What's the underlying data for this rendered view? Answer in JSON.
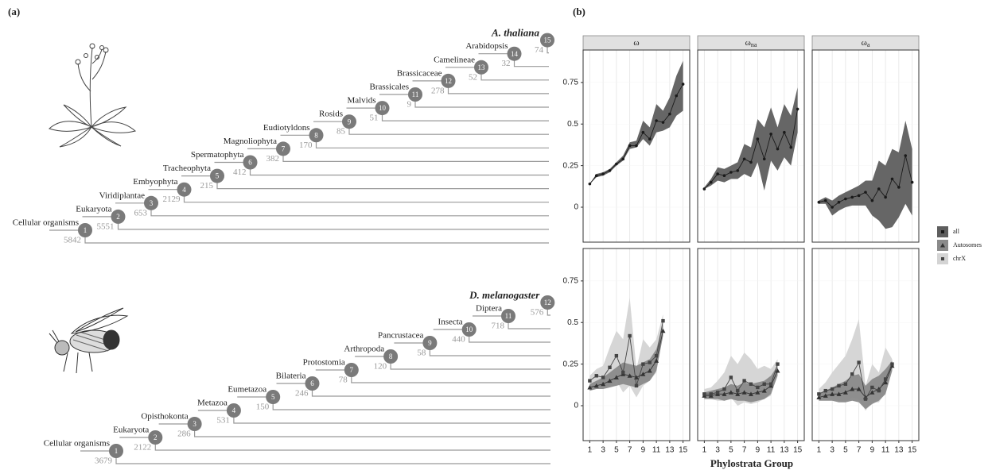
{
  "panel_a": {
    "label": "(a)",
    "trees": [
      {
        "species": "A. thaliana",
        "nodes": [
          {
            "id": 1,
            "name": "Cellular organisms",
            "count": 5842
          },
          {
            "id": 2,
            "name": "Eukaryota",
            "count": 5551
          },
          {
            "id": 3,
            "name": "Viridiplantae",
            "count": 653
          },
          {
            "id": 4,
            "name": "Embyophyta",
            "count": 2129
          },
          {
            "id": 5,
            "name": "Tracheophyta",
            "count": 215
          },
          {
            "id": 6,
            "name": "Spermatophyta",
            "count": 412
          },
          {
            "id": 7,
            "name": "Magnoliophyta",
            "count": 382
          },
          {
            "id": 8,
            "name": "Eudiotyldons",
            "count": 170
          },
          {
            "id": 9,
            "name": "Rosids",
            "count": 85
          },
          {
            "id": 10,
            "name": "Malvids",
            "count": 51
          },
          {
            "id": 11,
            "name": "Brassicales",
            "count": 9
          },
          {
            "id": 12,
            "name": "Brassicaceae",
            "count": 278
          },
          {
            "id": 13,
            "name": "Camelineae",
            "count": 52
          },
          {
            "id": 14,
            "name": "Arabidopsis",
            "count": 32
          },
          {
            "id": 15,
            "count": 74
          }
        ]
      },
      {
        "species": "D. melanogaster",
        "nodes": [
          {
            "id": 1,
            "name": "Cellular organisms",
            "count": 3679
          },
          {
            "id": 2,
            "name": "Eukaryota",
            "count": 2122
          },
          {
            "id": 3,
            "name": "Opisthokonta",
            "count": 286
          },
          {
            "id": 4,
            "name": "Metazoa",
            "count": 531
          },
          {
            "id": 5,
            "name": "Eumetazoa",
            "count": 150
          },
          {
            "id": 6,
            "name": "Bilateria",
            "count": 246
          },
          {
            "id": 7,
            "name": "Protostomia",
            "count": 78
          },
          {
            "id": 8,
            "name": "Arthropoda",
            "count": 120
          },
          {
            "id": 9,
            "name": "Pancrustacea",
            "count": 58
          },
          {
            "id": 10,
            "name": "Insecta",
            "count": 440
          },
          {
            "id": 11,
            "name": "Diptera",
            "count": 718
          },
          {
            "id": 12,
            "count": 576
          }
        ]
      }
    ]
  },
  "panel_b_label": "(b)",
  "x_label": "Phylostrata Group",
  "chart_data": [
    {
      "type": "line",
      "title": "ω",
      "xlim": [
        0,
        16
      ],
      "ylim": [
        -0.21,
        0.945
      ],
      "xticks": [
        1,
        3,
        5,
        7,
        9,
        11,
        13,
        15
      ],
      "yticks": [
        0,
        0.25,
        0.5,
        0.75
      ],
      "grid": true,
      "x": [
        1,
        2,
        3,
        4,
        5,
        6,
        7,
        8,
        9,
        10,
        11,
        12,
        13,
        14,
        15
      ],
      "series": [
        {
          "name": "all",
          "marker": "circle",
          "color": "#1a1a1a",
          "fill": "#5e5e5e",
          "values": [
            0.14,
            0.19,
            0.2,
            0.22,
            0.26,
            0.29,
            0.37,
            0.37,
            0.45,
            0.41,
            0.52,
            0.51,
            0.56,
            0.67,
            0.74
          ],
          "lower": [
            0.14,
            0.18,
            0.19,
            0.21,
            0.25,
            0.28,
            0.35,
            0.36,
            0.41,
            0.37,
            0.45,
            0.46,
            0.48,
            0.55,
            0.58
          ],
          "upper": [
            0.14,
            0.2,
            0.21,
            0.23,
            0.27,
            0.31,
            0.39,
            0.4,
            0.52,
            0.48,
            0.62,
            0.58,
            0.66,
            0.79,
            0.88
          ]
        }
      ]
    },
    {
      "type": "line",
      "title": "ω",
      "title_sub": "na",
      "xlim": [
        0,
        16
      ],
      "ylim": [
        -0.21,
        0.945
      ],
      "xticks": [
        1,
        3,
        5,
        7,
        9,
        11,
        13,
        15
      ],
      "yticks": [
        0,
        0.25,
        0.5,
        0.75
      ],
      "grid": true,
      "x": [
        1,
        2,
        3,
        4,
        5,
        6,
        7,
        8,
        9,
        10,
        11,
        12,
        13,
        14,
        15
      ],
      "series": [
        {
          "name": "all",
          "marker": "circle",
          "color": "#1a1a1a",
          "fill": "#5e5e5e",
          "values": [
            0.11,
            0.15,
            0.2,
            0.19,
            0.21,
            0.22,
            0.29,
            0.27,
            0.41,
            0.29,
            0.44,
            0.35,
            0.45,
            0.36,
            0.59
          ],
          "lower": [
            0.11,
            0.13,
            0.16,
            0.15,
            0.17,
            0.17,
            0.2,
            0.18,
            0.27,
            0.1,
            0.28,
            0.22,
            0.3,
            0.25,
            0.45
          ],
          "upper": [
            0.12,
            0.17,
            0.24,
            0.23,
            0.25,
            0.27,
            0.38,
            0.36,
            0.53,
            0.48,
            0.6,
            0.48,
            0.62,
            0.55,
            0.72
          ]
        }
      ]
    },
    {
      "type": "line",
      "title": "ω",
      "title_sub": "a",
      "xlim": [
        0,
        16
      ],
      "ylim": [
        -0.21,
        0.945
      ],
      "xticks": [
        1,
        3,
        5,
        7,
        9,
        11,
        13,
        15
      ],
      "yticks": [
        0,
        0.25,
        0.5,
        0.75
      ],
      "grid": true,
      "x": [
        1,
        2,
        3,
        4,
        5,
        6,
        7,
        8,
        9,
        10,
        11,
        12,
        13,
        14,
        15
      ],
      "series": [
        {
          "name": "all",
          "marker": "circle",
          "color": "#1a1a1a",
          "fill": "#5e5e5e",
          "values": [
            0.03,
            0.04,
            0,
            0.03,
            0.05,
            0.06,
            0.07,
            0.09,
            0.04,
            0.11,
            0.06,
            0.17,
            0.12,
            0.31,
            0.15
          ],
          "lower": [
            0.02,
            0.02,
            -0.05,
            -0.02,
            0,
            0.01,
            0.01,
            0.01,
            -0.05,
            -0.08,
            -0.13,
            -0.12,
            -0.06,
            0.02,
            -0.05
          ],
          "upper": [
            0.04,
            0.06,
            0.04,
            0.07,
            0.09,
            0.11,
            0.13,
            0.16,
            0.16,
            0.28,
            0.25,
            0.35,
            0.33,
            0.52,
            0.35
          ]
        }
      ]
    },
    {
      "type": "line",
      "xlim": [
        0,
        16
      ],
      "ylim": [
        -0.21,
        0.945
      ],
      "xticks": [
        1,
        3,
        5,
        7,
        9,
        11,
        13,
        15
      ],
      "yticks": [
        0,
        0.25,
        0.5,
        0.75
      ],
      "grid": true,
      "x": [
        1,
        2,
        3,
        4,
        5,
        6,
        7,
        8,
        9,
        10,
        11,
        12
      ],
      "series": [
        {
          "name": "Autosomes",
          "marker": "triangle",
          "color": "#333333",
          "fill": "#8a8a8a",
          "values": [
            0.11,
            0.12,
            0.13,
            0.15,
            0.17,
            0.19,
            0.18,
            0.17,
            0.19,
            0.21,
            0.27,
            0.45
          ],
          "lower": [
            0.09,
            0.1,
            0.1,
            0.11,
            0.12,
            0.13,
            0.12,
            0.11,
            0.13,
            0.15,
            0.21,
            0.42
          ],
          "upper": [
            0.13,
            0.15,
            0.17,
            0.2,
            0.23,
            0.26,
            0.25,
            0.24,
            0.26,
            0.28,
            0.34,
            0.49
          ]
        },
        {
          "name": "chrX",
          "marker": "square",
          "color": "#444444",
          "fill": "#d4d4d4",
          "values": [
            0.15,
            0.18,
            0.17,
            0.23,
            0.3,
            0.2,
            0.42,
            0.12,
            0.25,
            0.26,
            0.3,
            0.51
          ],
          "lower": [
            0.12,
            0.14,
            0.12,
            0.12,
            0.15,
            0.08,
            0.12,
            0.05,
            0.12,
            0.15,
            0.2,
            0.45
          ],
          "upper": [
            0.18,
            0.22,
            0.24,
            0.35,
            0.45,
            0.4,
            0.65,
            0.22,
            0.4,
            0.35,
            0.4,
            0.55
          ]
        }
      ]
    },
    {
      "type": "line",
      "xlim": [
        0,
        16
      ],
      "ylim": [
        -0.21,
        0.945
      ],
      "xticks": [
        1,
        3,
        5,
        7,
        9,
        11,
        13,
        15
      ],
      "yticks": [
        0,
        0.25,
        0.5,
        0.75
      ],
      "grid": true,
      "x": [
        1,
        2,
        3,
        4,
        5,
        6,
        7,
        8,
        9,
        10,
        11,
        12
      ],
      "series": [
        {
          "name": "Autosomes",
          "marker": "triangle",
          "color": "#333333",
          "fill": "#8a8a8a",
          "values": [
            0.06,
            0.06,
            0.07,
            0.07,
            0.08,
            0.07,
            0.08,
            0.07,
            0.08,
            0.09,
            0.12,
            0.21
          ],
          "lower": [
            0.04,
            0.04,
            0.04,
            0.03,
            0.04,
            0.03,
            0.03,
            0.02,
            0.03,
            0.04,
            0.07,
            0.18
          ],
          "upper": [
            0.08,
            0.09,
            0.1,
            0.11,
            0.13,
            0.12,
            0.14,
            0.13,
            0.14,
            0.15,
            0.18,
            0.24
          ]
        },
        {
          "name": "chrX",
          "marker": "square",
          "color": "#444444",
          "fill": "#d4d4d4",
          "values": [
            0.07,
            0.07,
            0.08,
            0.1,
            0.17,
            0.09,
            0.15,
            0.13,
            0.11,
            0.13,
            0.13,
            0.25
          ],
          "lower": [
            0.05,
            0.04,
            0.03,
            0.03,
            0.05,
            0,
            0.02,
            0.01,
            0.02,
            0.04,
            0.06,
            0.21
          ],
          "upper": [
            0.1,
            0.11,
            0.15,
            0.2,
            0.3,
            0.25,
            0.32,
            0.28,
            0.22,
            0.24,
            0.22,
            0.28
          ]
        }
      ]
    },
    {
      "type": "line",
      "xlim": [
        0,
        16
      ],
      "ylim": [
        -0.21,
        0.945
      ],
      "xticks": [
        1,
        3,
        5,
        7,
        9,
        11,
        13,
        15
      ],
      "yticks": [
        0,
        0.25,
        0.5,
        0.75
      ],
      "grid": true,
      "x": [
        1,
        2,
        3,
        4,
        5,
        6,
        7,
        8,
        9,
        10,
        11,
        12
      ],
      "series": [
        {
          "name": "Autosomes",
          "marker": "triangle",
          "color": "#333333",
          "fill": "#8a8a8a",
          "values": [
            0.05,
            0.06,
            0.07,
            0.07,
            0.08,
            0.1,
            0.1,
            0.05,
            0.08,
            0.1,
            0.14,
            0.24
          ],
          "lower": [
            0.03,
            0.03,
            0.03,
            0.02,
            0.02,
            0.03,
            0.02,
            -0.02,
            0.01,
            0.03,
            0.07,
            0.21
          ],
          "upper": [
            0.07,
            0.09,
            0.11,
            0.13,
            0.15,
            0.18,
            0.19,
            0.12,
            0.16,
            0.18,
            0.22,
            0.27
          ]
        },
        {
          "name": "chrX",
          "marker": "square",
          "color": "#444444",
          "fill": "#d4d4d4",
          "values": [
            0.07,
            0.09,
            0.1,
            0.12,
            0.13,
            0.19,
            0.26,
            0.04,
            0.11,
            0.09,
            0.16,
            0.25
          ],
          "lower": [
            0.04,
            0.05,
            0.04,
            0.03,
            0.02,
            0.05,
            0.04,
            -0.03,
            0.02,
            0.02,
            0.08,
            0.22
          ],
          "upper": [
            0.1,
            0.14,
            0.2,
            0.25,
            0.3,
            0.4,
            0.52,
            0.12,
            0.25,
            0.2,
            0.35,
            0.28
          ]
        }
      ]
    }
  ]
}
